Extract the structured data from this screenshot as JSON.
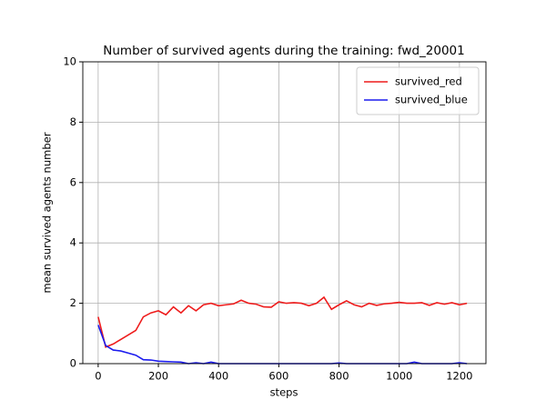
{
  "chart_data": {
    "type": "line",
    "title": "Number of survived agents during the training: fwd_20001",
    "xlabel": "steps",
    "ylabel": "mean survived agents number",
    "x": [
      0,
      25,
      50,
      75,
      100,
      125,
      150,
      175,
      200,
      225,
      250,
      275,
      300,
      325,
      350,
      375,
      400,
      425,
      450,
      475,
      500,
      525,
      550,
      575,
      600,
      625,
      650,
      675,
      700,
      725,
      750,
      775,
      800,
      825,
      850,
      875,
      900,
      925,
      950,
      975,
      1000,
      1025,
      1050,
      1075,
      1100,
      1125,
      1150,
      1175,
      1200,
      1225
    ],
    "series": [
      {
        "name": "survived_red",
        "color": "#ee1c1c",
        "values": [
          1.55,
          0.55,
          0.65,
          0.8,
          0.95,
          1.1,
          1.55,
          1.68,
          1.75,
          1.62,
          1.88,
          1.68,
          1.92,
          1.75,
          1.95,
          2.0,
          1.92,
          1.95,
          1.98,
          2.1,
          2.0,
          1.97,
          1.88,
          1.87,
          2.05,
          2.0,
          2.02,
          2.0,
          1.92,
          2.0,
          2.2,
          1.8,
          1.95,
          2.08,
          1.95,
          1.88,
          2.0,
          1.93,
          1.98,
          2.0,
          2.03,
          2.0,
          2.0,
          2.02,
          1.93,
          2.02,
          1.97,
          2.02,
          1.95,
          2.0
        ]
      },
      {
        "name": "survived_blue",
        "color": "#1c1cee",
        "values": [
          1.28,
          0.6,
          0.45,
          0.42,
          0.35,
          0.28,
          0.13,
          0.12,
          0.08,
          0.07,
          0.06,
          0.05,
          0.0,
          0.03,
          0.0,
          0.05,
          0.0,
          0.0,
          0.0,
          0.0,
          0.0,
          0.0,
          0.0,
          0.0,
          0.0,
          0.0,
          0.0,
          0.0,
          0.0,
          0.0,
          0.0,
          0.0,
          0.02,
          0.0,
          0.0,
          0.0,
          0.0,
          0.0,
          0.0,
          0.0,
          0.0,
          0.0,
          0.05,
          0.0,
          0.0,
          0.0,
          0.0,
          0.0,
          0.03,
          0.0
        ]
      }
    ],
    "xlim": [
      -51,
      1288
    ],
    "ylim": [
      0,
      10
    ],
    "xticks": [
      0,
      200,
      400,
      600,
      800,
      1000,
      1200
    ],
    "yticks": [
      0,
      2,
      4,
      6,
      8,
      10
    ],
    "grid": true,
    "legend": "upper right"
  }
}
